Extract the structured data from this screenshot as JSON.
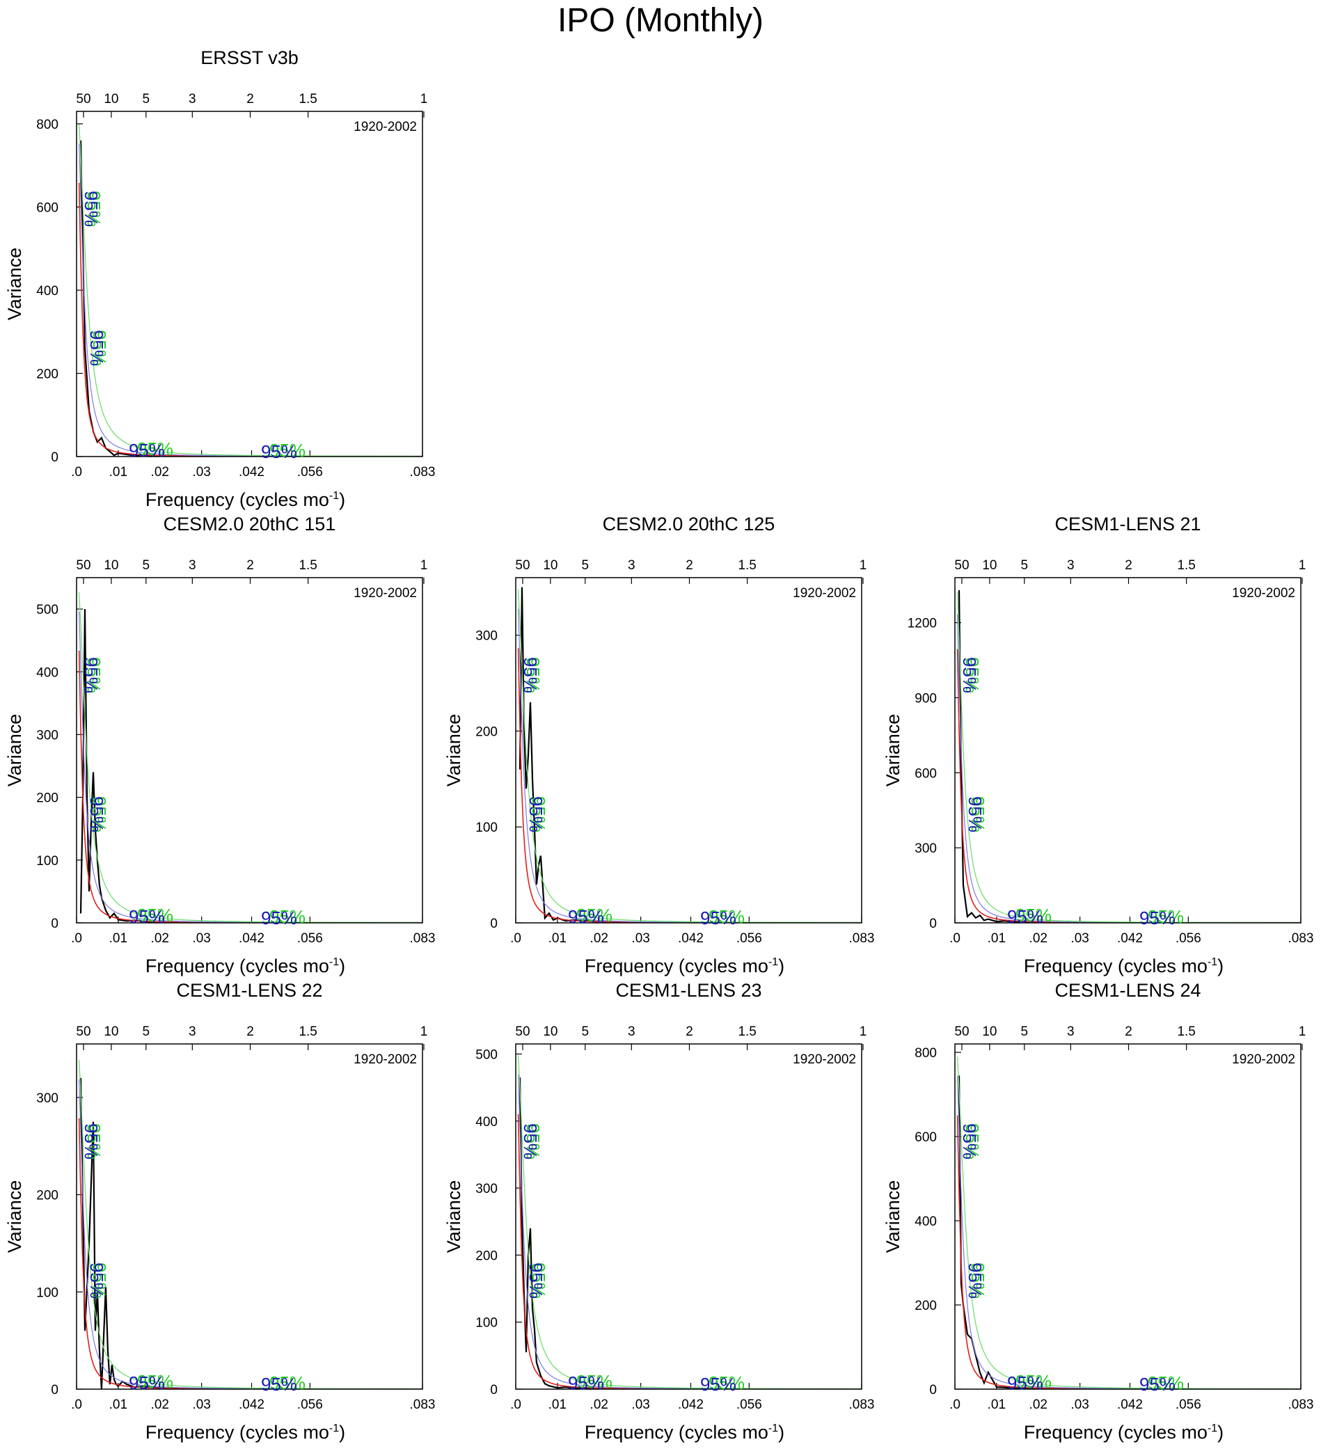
{
  "figure": {
    "title": "IPO (Monthly)"
  },
  "shared": {
    "xlabel": "Frequency (cycles mo",
    "xlabel_sup": "-1",
    "ylabel": "Variance",
    "bottom_ticks": [
      ".0",
      ".01",
      ".02",
      ".03",
      ".042",
      ".056",
      ".083"
    ],
    "bottom_tick_values": [
      0,
      0.01,
      0.02,
      0.03,
      0.042,
      0.056,
      0.083
    ],
    "top_ticks": [
      "50",
      "10",
      "5",
      "3",
      "2",
      "1.5",
      "1"
    ],
    "top_tick_periods": [
      50,
      10,
      5,
      3,
      2,
      1.5,
      1
    ],
    "conf_label": "95%",
    "colors": {
      "spectrum": "#000000",
      "red_noise": "#e0201c",
      "conf_blue": "#7a7ae8",
      "conf_green": "#66dd66",
      "label_blue": "#1a1ab8",
      "label_green": "#22cc22"
    }
  },
  "chart_data": [
    {
      "type": "line",
      "title": "ERSST v3b",
      "period": "1920-2002",
      "xlim": [
        0,
        0.083
      ],
      "ylim": [
        0,
        830
      ],
      "yticks": [
        0,
        200,
        400,
        600,
        800
      ],
      "series": [
        {
          "name": "spectrum",
          "x": [
            0.001,
            0.002,
            0.003,
            0.004,
            0.005,
            0.006,
            0.007,
            0.008,
            0.009,
            0.01,
            0.012,
            0.014,
            0.016,
            0.018,
            0.02,
            0.03,
            0.04,
            0.06,
            0.083
          ],
          "values": [
            760,
            260,
            110,
            60,
            35,
            45,
            20,
            12,
            3,
            8,
            5,
            2,
            4,
            2,
            1,
            1,
            0,
            0,
            0
          ]
        },
        {
          "name": "red_noise",
          "peak": 850,
          "decay": 900
        },
        {
          "name": "conf_blue",
          "peak": 850,
          "decay": 600
        },
        {
          "name": "conf_green",
          "peak": 850,
          "decay": 420
        }
      ]
    },
    {
      "type": "line",
      "title": "CESM2.0 20thC 151",
      "period": "1920-2002",
      "xlim": [
        0,
        0.083
      ],
      "ylim": [
        0,
        550
      ],
      "yticks": [
        0,
        100,
        200,
        300,
        400,
        500
      ],
      "series": [
        {
          "name": "spectrum",
          "x": [
            0.001,
            0.0015,
            0.002,
            0.0025,
            0.003,
            0.0035,
            0.004,
            0.0045,
            0.005,
            0.0055,
            0.006,
            0.007,
            0.008,
            0.009,
            0.01,
            0.012,
            0.014,
            0.016,
            0.02,
            0.03,
            0.083
          ],
          "values": [
            15,
            200,
            500,
            200,
            50,
            160,
            240,
            150,
            100,
            60,
            40,
            20,
            8,
            15,
            5,
            3,
            4,
            2,
            1,
            0,
            0
          ]
        },
        {
          "name": "red_noise",
          "peak": 560,
          "decay": 900
        },
        {
          "name": "conf_blue",
          "peak": 560,
          "decay": 600
        },
        {
          "name": "conf_green",
          "peak": 560,
          "decay": 420
        }
      ]
    },
    {
      "type": "line",
      "title": "CESM2.0 20thC 125",
      "period": "1920-2002",
      "xlim": [
        0,
        0.083
      ],
      "ylim": [
        0,
        360
      ],
      "yticks": [
        0,
        100,
        200,
        300
      ],
      "series": [
        {
          "name": "spectrum",
          "x": [
            0.001,
            0.0015,
            0.002,
            0.0025,
            0.003,
            0.0035,
            0.004,
            0.0045,
            0.005,
            0.0055,
            0.006,
            0.007,
            0.008,
            0.009,
            0.01,
            0.012,
            0.014,
            0.02,
            0.03,
            0.083
          ],
          "values": [
            160,
            350,
            200,
            140,
            175,
            230,
            150,
            100,
            40,
            60,
            70,
            5,
            10,
            3,
            5,
            2,
            3,
            1,
            0,
            0
          ]
        },
        {
          "name": "red_noise",
          "peak": 370,
          "decay": 900
        },
        {
          "name": "conf_blue",
          "peak": 370,
          "decay": 600
        },
        {
          "name": "conf_green",
          "peak": 370,
          "decay": 420
        }
      ]
    },
    {
      "type": "line",
      "title": "CESM1-LENS 21",
      "period": "1920-2002",
      "xlim": [
        0,
        0.083
      ],
      "ylim": [
        0,
        1380
      ],
      "yticks": [
        0,
        300,
        600,
        900,
        1200
      ],
      "series": [
        {
          "name": "spectrum",
          "x": [
            0.001,
            0.0015,
            0.002,
            0.003,
            0.004,
            0.005,
            0.006,
            0.007,
            0.008,
            0.01,
            0.012,
            0.014,
            0.02,
            0.03,
            0.083
          ],
          "values": [
            1330,
            600,
            150,
            25,
            40,
            20,
            30,
            10,
            15,
            5,
            8,
            3,
            1,
            0,
            0
          ]
        },
        {
          "name": "red_noise",
          "peak": 1450,
          "decay": 950
        },
        {
          "name": "conf_blue",
          "peak": 1450,
          "decay": 700
        },
        {
          "name": "conf_green",
          "peak": 1450,
          "decay": 520
        }
      ]
    },
    {
      "type": "line",
      "title": "CESM1-LENS 22",
      "period": "1920-2002",
      "xlim": [
        0,
        0.083
      ],
      "ylim": [
        0,
        355
      ],
      "yticks": [
        0,
        100,
        200,
        300
      ],
      "series": [
        {
          "name": "spectrum",
          "x": [
            0.001,
            0.002,
            0.003,
            0.004,
            0.0045,
            0.005,
            0.0055,
            0.006,
            0.007,
            0.0075,
            0.008,
            0.0085,
            0.009,
            0.0095,
            0.01,
            0.011,
            0.012,
            0.014,
            0.016,
            0.02,
            0.03,
            0.083
          ],
          "values": [
            320,
            60,
            150,
            275,
            60,
            100,
            40,
            0,
            105,
            40,
            5,
            25,
            10,
            5,
            3,
            8,
            5,
            2,
            3,
            1,
            0,
            0
          ]
        },
        {
          "name": "red_noise",
          "peak": 360,
          "decay": 900
        },
        {
          "name": "conf_blue",
          "peak": 360,
          "decay": 600
        },
        {
          "name": "conf_green",
          "peak": 360,
          "decay": 420
        }
      ]
    },
    {
      "type": "line",
      "title": "CESM1-LENS 23",
      "period": "1920-2002",
      "xlim": [
        0,
        0.083
      ],
      "ylim": [
        0,
        515
      ],
      "yticks": [
        0,
        100,
        200,
        300,
        400,
        500
      ],
      "series": [
        {
          "name": "spectrum",
          "x": [
            0.001,
            0.0015,
            0.002,
            0.0025,
            0.003,
            0.0035,
            0.004,
            0.0045,
            0.005,
            0.006,
            0.007,
            0.008,
            0.01,
            0.012,
            0.014,
            0.02,
            0.03,
            0.083
          ],
          "values": [
            465,
            250,
            140,
            55,
            200,
            240,
            120,
            90,
            40,
            20,
            8,
            5,
            2,
            3,
            1,
            0,
            0,
            0
          ]
        },
        {
          "name": "red_noise",
          "peak": 530,
          "decay": 900
        },
        {
          "name": "conf_blue",
          "peak": 530,
          "decay": 600
        },
        {
          "name": "conf_green",
          "peak": 530,
          "decay": 420
        }
      ]
    },
    {
      "type": "line",
      "title": "CESM1-LENS 24",
      "period": "1920-2002",
      "xlim": [
        0,
        0.083
      ],
      "ylim": [
        0,
        820
      ],
      "yticks": [
        0,
        200,
        400,
        600,
        800
      ],
      "series": [
        {
          "name": "spectrum",
          "x": [
            0.001,
            0.0015,
            0.002,
            0.003,
            0.004,
            0.005,
            0.006,
            0.007,
            0.008,
            0.01,
            0.012,
            0.014,
            0.02,
            0.03,
            0.083
          ],
          "values": [
            745,
            250,
            200,
            130,
            120,
            80,
            40,
            15,
            40,
            5,
            4,
            2,
            1,
            0,
            0
          ]
        },
        {
          "name": "red_noise",
          "peak": 840,
          "decay": 900
        },
        {
          "name": "conf_blue",
          "peak": 840,
          "decay": 600
        },
        {
          "name": "conf_green",
          "peak": 840,
          "decay": 420
        }
      ]
    }
  ]
}
